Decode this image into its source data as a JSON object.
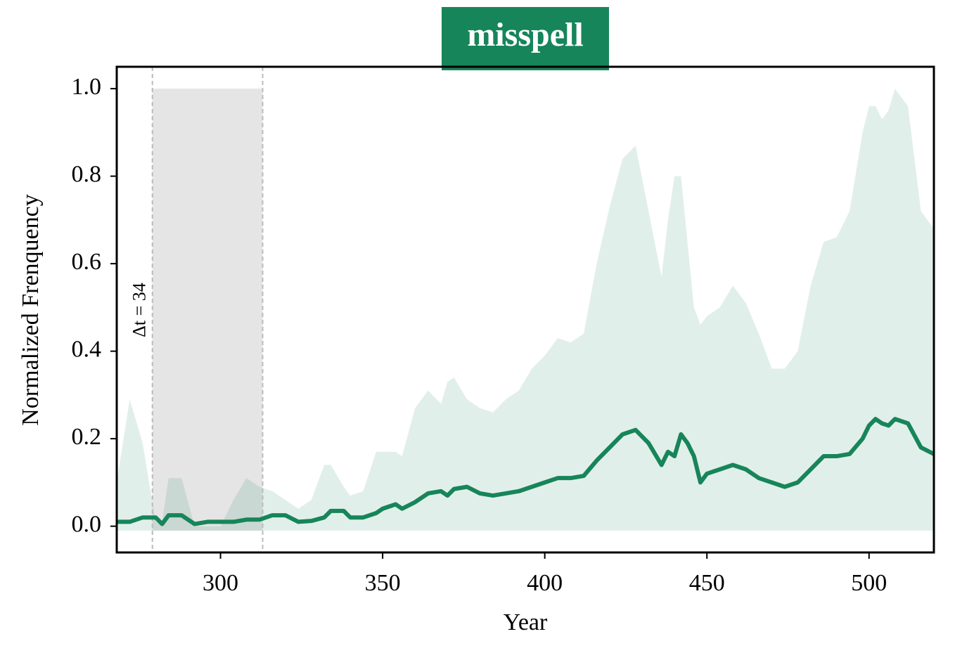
{
  "chart_data": {
    "type": "line",
    "title": "misspell",
    "title_color": "#17855a",
    "xlabel": "Year",
    "ylabel": "Normalized Frenquency",
    "annotation": "Δt = 34",
    "xlim": [
      268,
      520
    ],
    "ylim": [
      -0.06,
      1.05
    ],
    "xticks": [
      300,
      350,
      400,
      450,
      500
    ],
    "yticks": [
      {
        "value": 0,
        "label": "0.0"
      },
      0.2,
      0.4,
      0.6,
      0.8,
      {
        "value": 1,
        "label": "1.0"
      }
    ],
    "span": {
      "x": [
        279,
        313
      ],
      "y": [
        -0.01,
        1.0
      ],
      "color": "#e5e5e5",
      "line_color": "#bbbbbb"
    },
    "x": [
      268,
      272,
      276,
      280,
      282,
      284,
      288,
      292,
      296,
      300,
      304,
      308,
      312,
      316,
      320,
      324,
      328,
      332,
      334,
      338,
      340,
      344,
      348,
      350,
      354,
      356,
      360,
      364,
      368,
      370,
      372,
      376,
      380,
      384,
      388,
      392,
      396,
      400,
      404,
      408,
      412,
      416,
      420,
      424,
      428,
      432,
      436,
      438,
      440,
      442,
      444,
      446,
      448,
      450,
      454,
      458,
      462,
      466,
      470,
      474,
      478,
      482,
      486,
      490,
      494,
      498,
      500,
      502,
      504,
      506,
      508,
      512,
      516,
      520
    ],
    "series": [
      {
        "color": "#17855a",
        "values": [
          0.01,
          0.01,
          0.02,
          0.02,
          0.005,
          0.025,
          0.025,
          0.005,
          0.01,
          0.01,
          0.01,
          0.015,
          0.015,
          0.025,
          0.025,
          0.01,
          0.012,
          0.02,
          0.035,
          0.035,
          0.02,
          0.02,
          0.03,
          0.04,
          0.05,
          0.04,
          0.055,
          0.075,
          0.08,
          0.07,
          0.085,
          0.09,
          0.075,
          0.07,
          0.075,
          0.08,
          0.09,
          0.1,
          0.11,
          0.11,
          0.115,
          0.15,
          0.18,
          0.21,
          0.22,
          0.19,
          0.14,
          0.17,
          0.16,
          0.21,
          0.19,
          0.16,
          0.1,
          0.12,
          0.13,
          0.14,
          0.13,
          0.11,
          0.1,
          0.09,
          0.1,
          0.13,
          0.16,
          0.16,
          0.165,
          0.2,
          0.23,
          0.245,
          0.235,
          0.23,
          0.245,
          0.235,
          0.18,
          0.165
        ]
      }
    ],
    "band": {
      "color": "#17855a",
      "opacity": 0.13,
      "upper": [
        0.1,
        0.29,
        0.19,
        0.01,
        0.01,
        0.11,
        0.11,
        0.0,
        0.0,
        0.0,
        0.06,
        0.11,
        0.09,
        0.08,
        0.06,
        0.04,
        0.06,
        0.14,
        0.14,
        0.09,
        0.07,
        0.08,
        0.17,
        0.17,
        0.17,
        0.16,
        0.27,
        0.31,
        0.28,
        0.33,
        0.34,
        0.29,
        0.27,
        0.26,
        0.29,
        0.31,
        0.36,
        0.39,
        0.43,
        0.42,
        0.44,
        0.6,
        0.73,
        0.84,
        0.87,
        0.72,
        0.57,
        0.7,
        0.8,
        0.8,
        0.65,
        0.5,
        0.46,
        0.48,
        0.5,
        0.55,
        0.51,
        0.44,
        0.36,
        0.36,
        0.4,
        0.55,
        0.65,
        0.66,
        0.72,
        0.9,
        0.96,
        0.96,
        0.93,
        0.95,
        1.0,
        0.96,
        0.72,
        0.68
      ],
      "lower": [
        -0.01,
        -0.01,
        -0.01,
        -0.01,
        -0.01,
        -0.01,
        -0.01,
        -0.01,
        -0.01,
        -0.01,
        -0.01,
        -0.01,
        -0.01,
        -0.01,
        -0.01,
        -0.01,
        -0.01,
        -0.01,
        -0.01,
        -0.01,
        -0.01,
        -0.01,
        -0.01,
        -0.01,
        -0.01,
        -0.01,
        -0.01,
        -0.01,
        -0.01,
        -0.01,
        -0.01,
        -0.01,
        -0.01,
        -0.01,
        -0.01,
        -0.01,
        -0.01,
        -0.01,
        -0.01,
        -0.01,
        -0.01,
        -0.01,
        -0.01,
        -0.01,
        -0.01,
        -0.01,
        -0.01,
        -0.01,
        -0.01,
        -0.01,
        -0.01,
        -0.01,
        -0.01,
        -0.01,
        -0.01,
        -0.01,
        -0.01,
        -0.01,
        -0.01,
        -0.01,
        -0.01,
        -0.01,
        -0.01,
        -0.01,
        -0.01,
        -0.01,
        -0.01,
        -0.01,
        -0.01,
        -0.01,
        -0.01,
        -0.01,
        -0.01,
        -0.01
      ]
    }
  }
}
